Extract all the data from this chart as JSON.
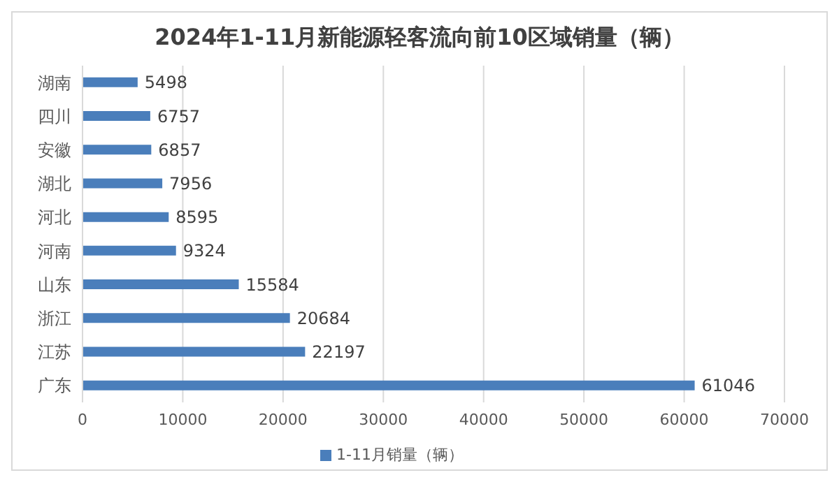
{
  "chart_data": {
    "type": "bar",
    "orientation": "horizontal",
    "title": "2024年1-11月新能源轻客流向前10区域销量（辆）",
    "categories": [
      "湖南",
      "四川",
      "安徽",
      "湖北",
      "河北",
      "河南",
      "山东",
      "浙江",
      "江苏",
      "广东"
    ],
    "series": [
      {
        "name": "1-11月销量（辆）",
        "color": "#4a7ebb",
        "values": [
          5498,
          6757,
          6857,
          7956,
          8595,
          9324,
          15584,
          20684,
          22197,
          61046
        ]
      }
    ],
    "xlim": [
      0,
      70000
    ],
    "xticks": [
      0,
      10000,
      20000,
      30000,
      40000,
      50000,
      60000,
      70000
    ],
    "grid": "x",
    "legend": "bottom",
    "data_labels": true
  }
}
